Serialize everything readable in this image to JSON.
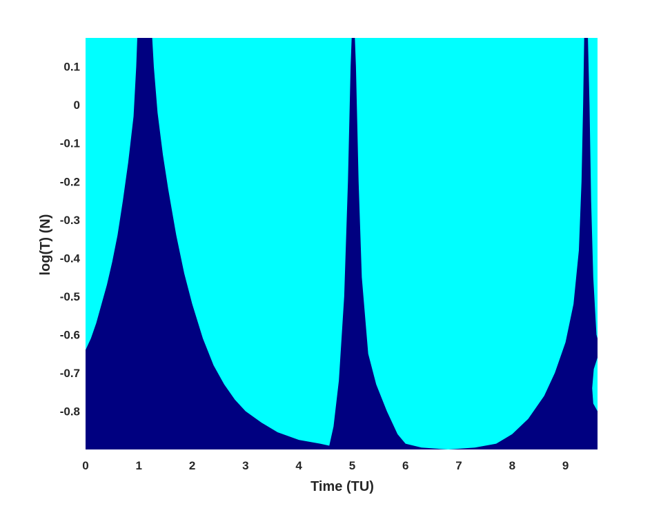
{
  "chart_data": {
    "type": "heatmap",
    "title": "",
    "xlabel": "Time (TU)",
    "ylabel": "log(T) (N)",
    "xlim": [
      0,
      9.6
    ],
    "ylim": [
      -0.9,
      0.175
    ],
    "xticks": [
      0,
      1,
      2,
      3,
      4,
      5,
      6,
      7,
      8,
      9
    ],
    "yticks": [
      0.1,
      0,
      -0.1,
      -0.2,
      -0.3,
      -0.4,
      -0.5,
      -0.6,
      -0.7,
      -0.8
    ],
    "xtick_labels": [
      "0",
      "1",
      "2",
      "3",
      "4",
      "5",
      "6",
      "7",
      "8",
      "9"
    ],
    "ytick_labels": [
      "0.1",
      "0",
      "-0.1",
      "-0.2",
      "-0.3",
      "-0.4",
      "-0.5",
      "-0.6",
      "-0.7",
      "-0.8"
    ],
    "grid": false,
    "colors": {
      "background_region": "#00ffff",
      "boundary_region": "#000080"
    },
    "region_boundary": {
      "description": "dark region lies below this boundary log(T) value at each time",
      "points": [
        [
          0.0,
          -0.64
        ],
        [
          0.1,
          -0.61
        ],
        [
          0.2,
          -0.57
        ],
        [
          0.3,
          -0.52
        ],
        [
          0.4,
          -0.47
        ],
        [
          0.5,
          -0.41
        ],
        [
          0.6,
          -0.34
        ],
        [
          0.7,
          -0.25
        ],
        [
          0.8,
          -0.15
        ],
        [
          0.9,
          -0.03
        ],
        [
          0.95,
          0.1
        ],
        [
          0.97,
          0.175
        ],
        [
          1.25,
          0.175
        ],
        [
          1.28,
          0.1
        ],
        [
          1.35,
          -0.02
        ],
        [
          1.45,
          -0.13
        ],
        [
          1.55,
          -0.22
        ],
        [
          1.7,
          -0.34
        ],
        [
          1.85,
          -0.44
        ],
        [
          2.0,
          -0.52
        ],
        [
          2.2,
          -0.61
        ],
        [
          2.4,
          -0.68
        ],
        [
          2.6,
          -0.73
        ],
        [
          2.8,
          -0.77
        ],
        [
          3.0,
          -0.8
        ],
        [
          3.3,
          -0.83
        ],
        [
          3.6,
          -0.855
        ],
        [
          4.0,
          -0.875
        ],
        [
          4.4,
          -0.885
        ],
        [
          4.57,
          -0.89
        ],
        [
          4.65,
          -0.84
        ],
        [
          4.75,
          -0.72
        ],
        [
          4.85,
          -0.5
        ],
        [
          4.92,
          -0.2
        ],
        [
          4.97,
          0.1
        ],
        [
          4.99,
          0.175
        ],
        [
          5.05,
          0.175
        ],
        [
          5.07,
          0.1
        ],
        [
          5.12,
          -0.2
        ],
        [
          5.18,
          -0.45
        ],
        [
          5.3,
          -0.65
        ],
        [
          5.45,
          -0.73
        ],
        [
          5.65,
          -0.8
        ],
        [
          5.85,
          -0.86
        ],
        [
          6.0,
          -0.885
        ],
        [
          6.3,
          -0.895
        ],
        [
          6.8,
          -0.9
        ],
        [
          7.3,
          -0.895
        ],
        [
          7.7,
          -0.885
        ],
        [
          8.0,
          -0.86
        ],
        [
          8.3,
          -0.82
        ],
        [
          8.6,
          -0.76
        ],
        [
          8.8,
          -0.7
        ],
        [
          9.0,
          -0.62
        ],
        [
          9.15,
          -0.52
        ],
        [
          9.25,
          -0.38
        ],
        [
          9.3,
          -0.2
        ],
        [
          9.33,
          0.0
        ],
        [
          9.35,
          0.175
        ],
        [
          9.42,
          0.175
        ],
        [
          9.45,
          0.0
        ],
        [
          9.48,
          -0.25
        ],
        [
          9.52,
          -0.45
        ],
        [
          9.58,
          -0.6
        ],
        [
          9.6,
          -0.61
        ]
      ]
    },
    "cyan_intrusion": {
      "description": "small cyan pocket at right edge near log(T) -0.68 to -0.8",
      "points": [
        [
          9.6,
          -0.66
        ],
        [
          9.53,
          -0.69
        ],
        [
          9.5,
          -0.74
        ],
        [
          9.52,
          -0.78
        ],
        [
          9.6,
          -0.8
        ]
      ]
    }
  }
}
